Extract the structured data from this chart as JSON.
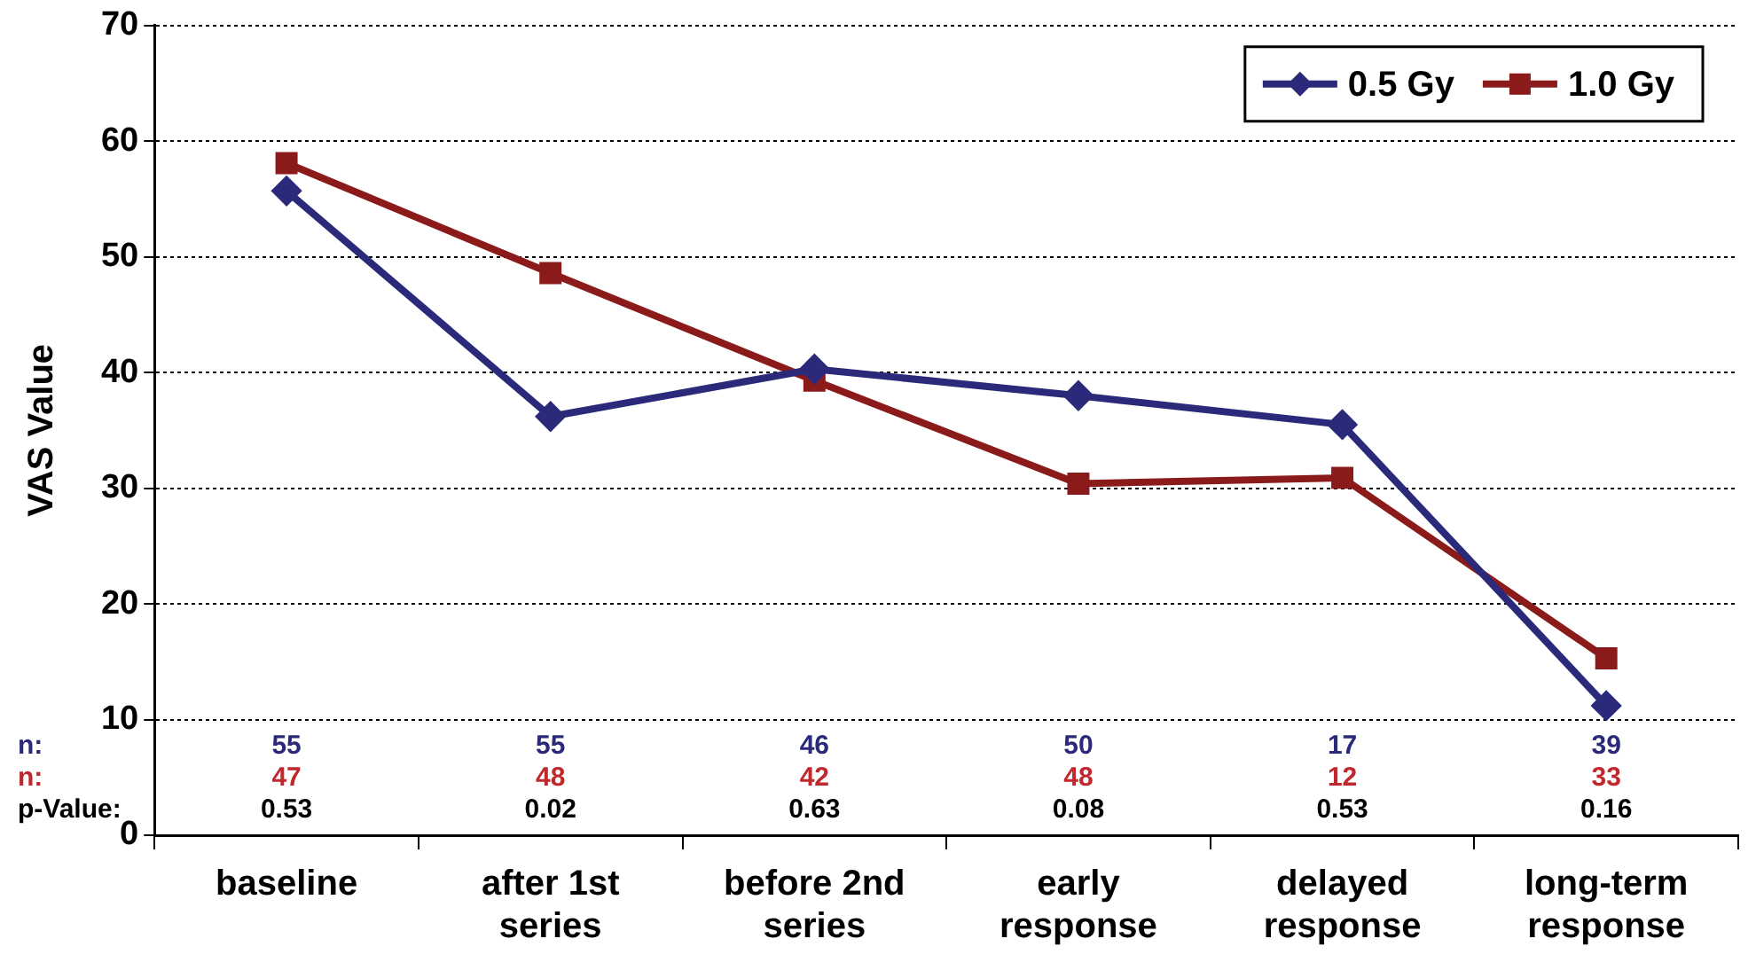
{
  "chart_data": {
    "type": "line",
    "ylabel": "VAS Value",
    "categories": [
      "baseline",
      "after 1st series",
      "before 2nd series",
      "early response",
      "delayed response",
      "long-term response"
    ],
    "series": [
      {
        "name": "0.5 Gy",
        "color": "#2b2a7a",
        "marker": "diamond",
        "values": [
          55.7,
          36.2,
          40.3,
          38.0,
          35.5,
          11.2
        ]
      },
      {
        "name": "1.0 Gy",
        "color": "#8b1a1a",
        "marker": "square",
        "values": [
          58.1,
          48.6,
          39.3,
          30.4,
          30.9,
          15.3
        ]
      }
    ],
    "ylim": [
      0,
      70
    ],
    "yticks": [
      0,
      10,
      20,
      30,
      40,
      50,
      60,
      70
    ],
    "grid": "y",
    "legend": "top right",
    "line_style": "solid",
    "annotations": [
      "n:",
      "55",
      "55",
      "46",
      "50",
      "17",
      "39",
      "n:",
      "47",
      "48",
      "42",
      "48",
      "12",
      "33",
      "p-Value:",
      "0.53",
      "0.02",
      "0.63",
      "0.08",
      "0.53",
      "0.16"
    ]
  }
}
